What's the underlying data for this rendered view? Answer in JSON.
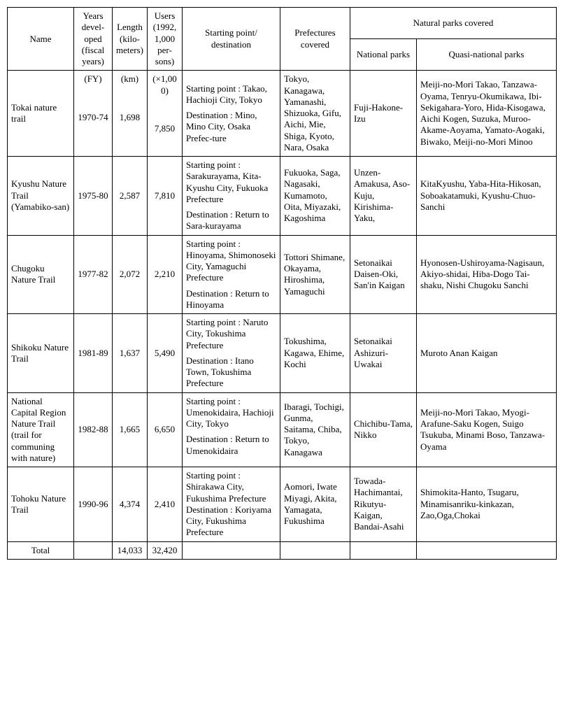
{
  "headers": {
    "name": "Name",
    "years": "Years devel-oped (fiscal years)",
    "length": "Length (kilo-meters)",
    "users": "Users (1992, 1,000 per-sons)",
    "start": "Starting point/ destination",
    "pref": "Prefectures covered",
    "parks_group": "Natural parks covered",
    "national": "National parks",
    "quasi": "Quasi-national parks"
  },
  "units": {
    "years": "(FY)",
    "length": "(km)",
    "users": "(×1,000)"
  },
  "rows": [
    {
      "name": "Tokai nature trail",
      "years": "1970-74",
      "length": "1,698",
      "users": "7,850",
      "start": "Starting point : Takao, Hachioji City, Tokyo",
      "dest": "Destination : Mino, Mino City, Osaka Prefec-ture",
      "pref": "Tokyo, Kanagawa, Yamanashi, Shizuoka, Gifu, Aichi, Mie, Shiga, Kyoto, Nara, Osaka",
      "national": "Fuji-Hakone-Izu",
      "quasi": "Meiji-no-Mori Takao, Tanzawa-Oyama, Tenryu-Okumikawa, Ibi-Sekigahara-Yoro, Hida-Kisogawa, Aichi Kogen, Suzuka, Muroo-Akame-Aoyama, Yamato-Aogaki, Biwako, Meiji-no-Mori Minoo"
    },
    {
      "name": "Kyushu Nature Trail (Yamabiko-san)",
      "years": "1975-80",
      "length": "2,587",
      "users": "7,810",
      "start": "Starting point : Sarakurayama, Kita-Kyushu City, Fukuoka Prefecture",
      "dest": "Destination : Return to Sara-kurayama",
      "pref": "Fukuoka, Saga, Nagasaki, Kumamoto, Oita, Miyazaki, Kagoshima",
      "national": "Unzen-Amakusa, Aso-Kuju, Kirishima-Yaku,",
      "quasi": "KitaKyushu, Yaba-Hita-Hikosan, Soboakatamuki, Kyushu-Chuo-Sanchi"
    },
    {
      "name": "Chugoku Nature Trail",
      "years": "1977-82",
      "length": "2,072",
      "users": "2,210",
      "start": "Starting point : Hinoyama, Shimonoseki City, Yamaguchi Prefecture",
      "dest": "Destination : Return to Hinoyama",
      "pref": "Tottori Shimane, Okayama, Hiroshima, Yamaguchi",
      "national": "Setonaikai Daisen-Oki, San'in Kaigan",
      "quasi": "Hyonosen-Ushiroyama-Nagisaun, Akiyo-shidai, Hiba-Dogo Tai-shaku, Nishi Chugoku Sanchi"
    },
    {
      "name": "Shikoku Nature Trail",
      "years": "1981-89",
      "length": "1,637",
      "users": "5,490",
      "start": "Starting point : Naruto City, Tokushima Prefecture",
      "dest": "Destination : Itano Town, Tokushima Prefecture",
      "pref": "Tokushima, Kagawa, Ehime, Kochi",
      "national": "Setonaikai Ashizuri-Uwakai",
      "quasi": "Muroto Anan Kaigan"
    },
    {
      "name": "National Capital Region Nature Trail (trail for communing with nature)",
      "years": "1982-88",
      "length": "1,665",
      "users": "6,650",
      "start": "Starting point : Umenokidaira, Hachioji City, Tokyo",
      "dest": "Destination : Return to Umenokidaira",
      "pref": "Ibaragi, Tochigi, Gunma, Saitama, Chiba, Tokyo, Kanagawa",
      "national": "Chichibu-Tama, Nikko",
      "quasi": "Meiji-no-Mori Takao, Myogi-Arafune-Saku Kogen, Suigo Tsukuba, Minami Boso, Tanzawa-Oyama"
    },
    {
      "name": "Tohoku Nature Trail",
      "years": "1990-96",
      "length": "4,374",
      "users": "2,410",
      "start": "Starting point : Shirakawa City, Fukushima Prefecture",
      "dest": "Destination : Koriyama City, Fukushima Prefecture",
      "pref": "Aomori, Iwate Miyagi, Akita, Yamagata, Fukushima",
      "national": "Towada-Hachimantai, Rikutyu-Kaigan, Bandai-Asahi",
      "quasi": "Shimokita-Hanto, Tsugaru, Minamisanriku-kinkazan, Zao,Oga,Chokai"
    }
  ],
  "total": {
    "label": "Total",
    "length": "14,033",
    "users": "32,420"
  }
}
